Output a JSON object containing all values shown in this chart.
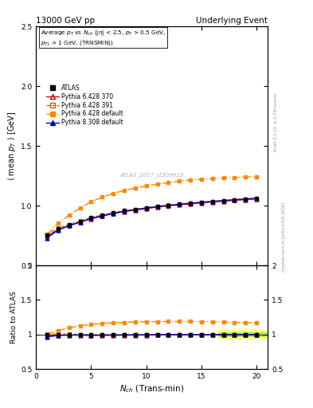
{
  "title_left": "13000 GeV pp",
  "title_right": "Underlying Event",
  "watermark": "ATLAS_2017_I1509919",
  "ylabel_main": "⟨ mean p_T ⟩ [GeV]",
  "ylabel_ratio": "Ratio to ATLAS",
  "xlabel": "N_{ch} (Trans-min)",
  "ylim_main": [
    0.5,
    2.5
  ],
  "ylim_ratio": [
    0.5,
    2.0
  ],
  "xlim": [
    0,
    21
  ],
  "yticks_main": [
    0.5,
    1.0,
    1.5,
    2.0,
    2.5
  ],
  "yticks_ratio": [
    0.5,
    1.0,
    1.5,
    2.0
  ],
  "xticks": [
    0,
    5,
    10,
    15,
    20
  ],
  "x_atlas": [
    1,
    2,
    3,
    4,
    5,
    6,
    7,
    8,
    9,
    10,
    11,
    12,
    13,
    14,
    15,
    16,
    17,
    18,
    19,
    20
  ],
  "y_atlas": [
    0.755,
    0.805,
    0.838,
    0.868,
    0.9,
    0.922,
    0.942,
    0.958,
    0.97,
    0.982,
    0.993,
    1.003,
    1.012,
    1.02,
    1.028,
    1.036,
    1.043,
    1.05,
    1.055,
    1.06
  ],
  "y_err_atlas": [
    0.006,
    0.005,
    0.004,
    0.004,
    0.004,
    0.004,
    0.003,
    0.003,
    0.003,
    0.003,
    0.003,
    0.003,
    0.003,
    0.003,
    0.003,
    0.003,
    0.004,
    0.004,
    0.005,
    0.01
  ],
  "x_py6_370": [
    1,
    2,
    3,
    4,
    5,
    6,
    7,
    8,
    9,
    10,
    11,
    12,
    13,
    14,
    15,
    16,
    17,
    18,
    19,
    20
  ],
  "y_py6_370": [
    0.745,
    0.798,
    0.833,
    0.862,
    0.89,
    0.912,
    0.933,
    0.95,
    0.963,
    0.975,
    0.988,
    0.998,
    1.007,
    1.015,
    1.023,
    1.03,
    1.037,
    1.044,
    1.05,
    1.057
  ],
  "x_py6_391": [
    1,
    2,
    3,
    4,
    5,
    6,
    7,
    8,
    9,
    10,
    11,
    12,
    13,
    14,
    15,
    16,
    17,
    18,
    19,
    20
  ],
  "y_py6_391": [
    0.76,
    0.812,
    0.843,
    0.872,
    0.9,
    0.922,
    0.942,
    0.958,
    0.97,
    0.982,
    0.994,
    1.004,
    1.013,
    1.021,
    1.029,
    1.036,
    1.043,
    1.05,
    1.057,
    1.063
  ],
  "x_py6_def": [
    1,
    2,
    3,
    4,
    5,
    6,
    7,
    8,
    9,
    10,
    11,
    12,
    13,
    14,
    15,
    16,
    17,
    18,
    19,
    20
  ],
  "y_py6_def": [
    0.76,
    0.852,
    0.92,
    0.98,
    1.032,
    1.072,
    1.103,
    1.127,
    1.147,
    1.165,
    1.18,
    1.193,
    1.205,
    1.215,
    1.222,
    1.228,
    1.232,
    1.236,
    1.24,
    1.243
  ],
  "x_py8_def": [
    1,
    2,
    3,
    4,
    5,
    6,
    7,
    8,
    9,
    10,
    11,
    12,
    13,
    14,
    15,
    16,
    17,
    18,
    19,
    20
  ],
  "y_py8_def": [
    0.73,
    0.795,
    0.832,
    0.863,
    0.893,
    0.916,
    0.937,
    0.954,
    0.967,
    0.98,
    0.993,
    1.003,
    1.012,
    1.02,
    1.028,
    1.036,
    1.043,
    1.05,
    1.056,
    1.062
  ],
  "color_atlas": "#000000",
  "color_py6_370": "#cc0000",
  "color_py6_391": "#bb6600",
  "color_py6_def": "#ff8800",
  "color_py8_def": "#0000cc",
  "atlas_band_color": "#aaaaaa",
  "atlas_band_alpha": 0.5,
  "ratio_band_green_color": "#00cc00",
  "ratio_band_green_alpha": 0.35,
  "ratio_band_yellow_color": "#ffff00",
  "ratio_band_yellow_alpha": 0.5,
  "ratio_band_green": [
    0.965,
    1.035
  ],
  "ratio_band_yellow": [
    0.935,
    1.065
  ],
  "ratio_band_xstart": 16.5,
  "ratio_band_xend": 21.0
}
